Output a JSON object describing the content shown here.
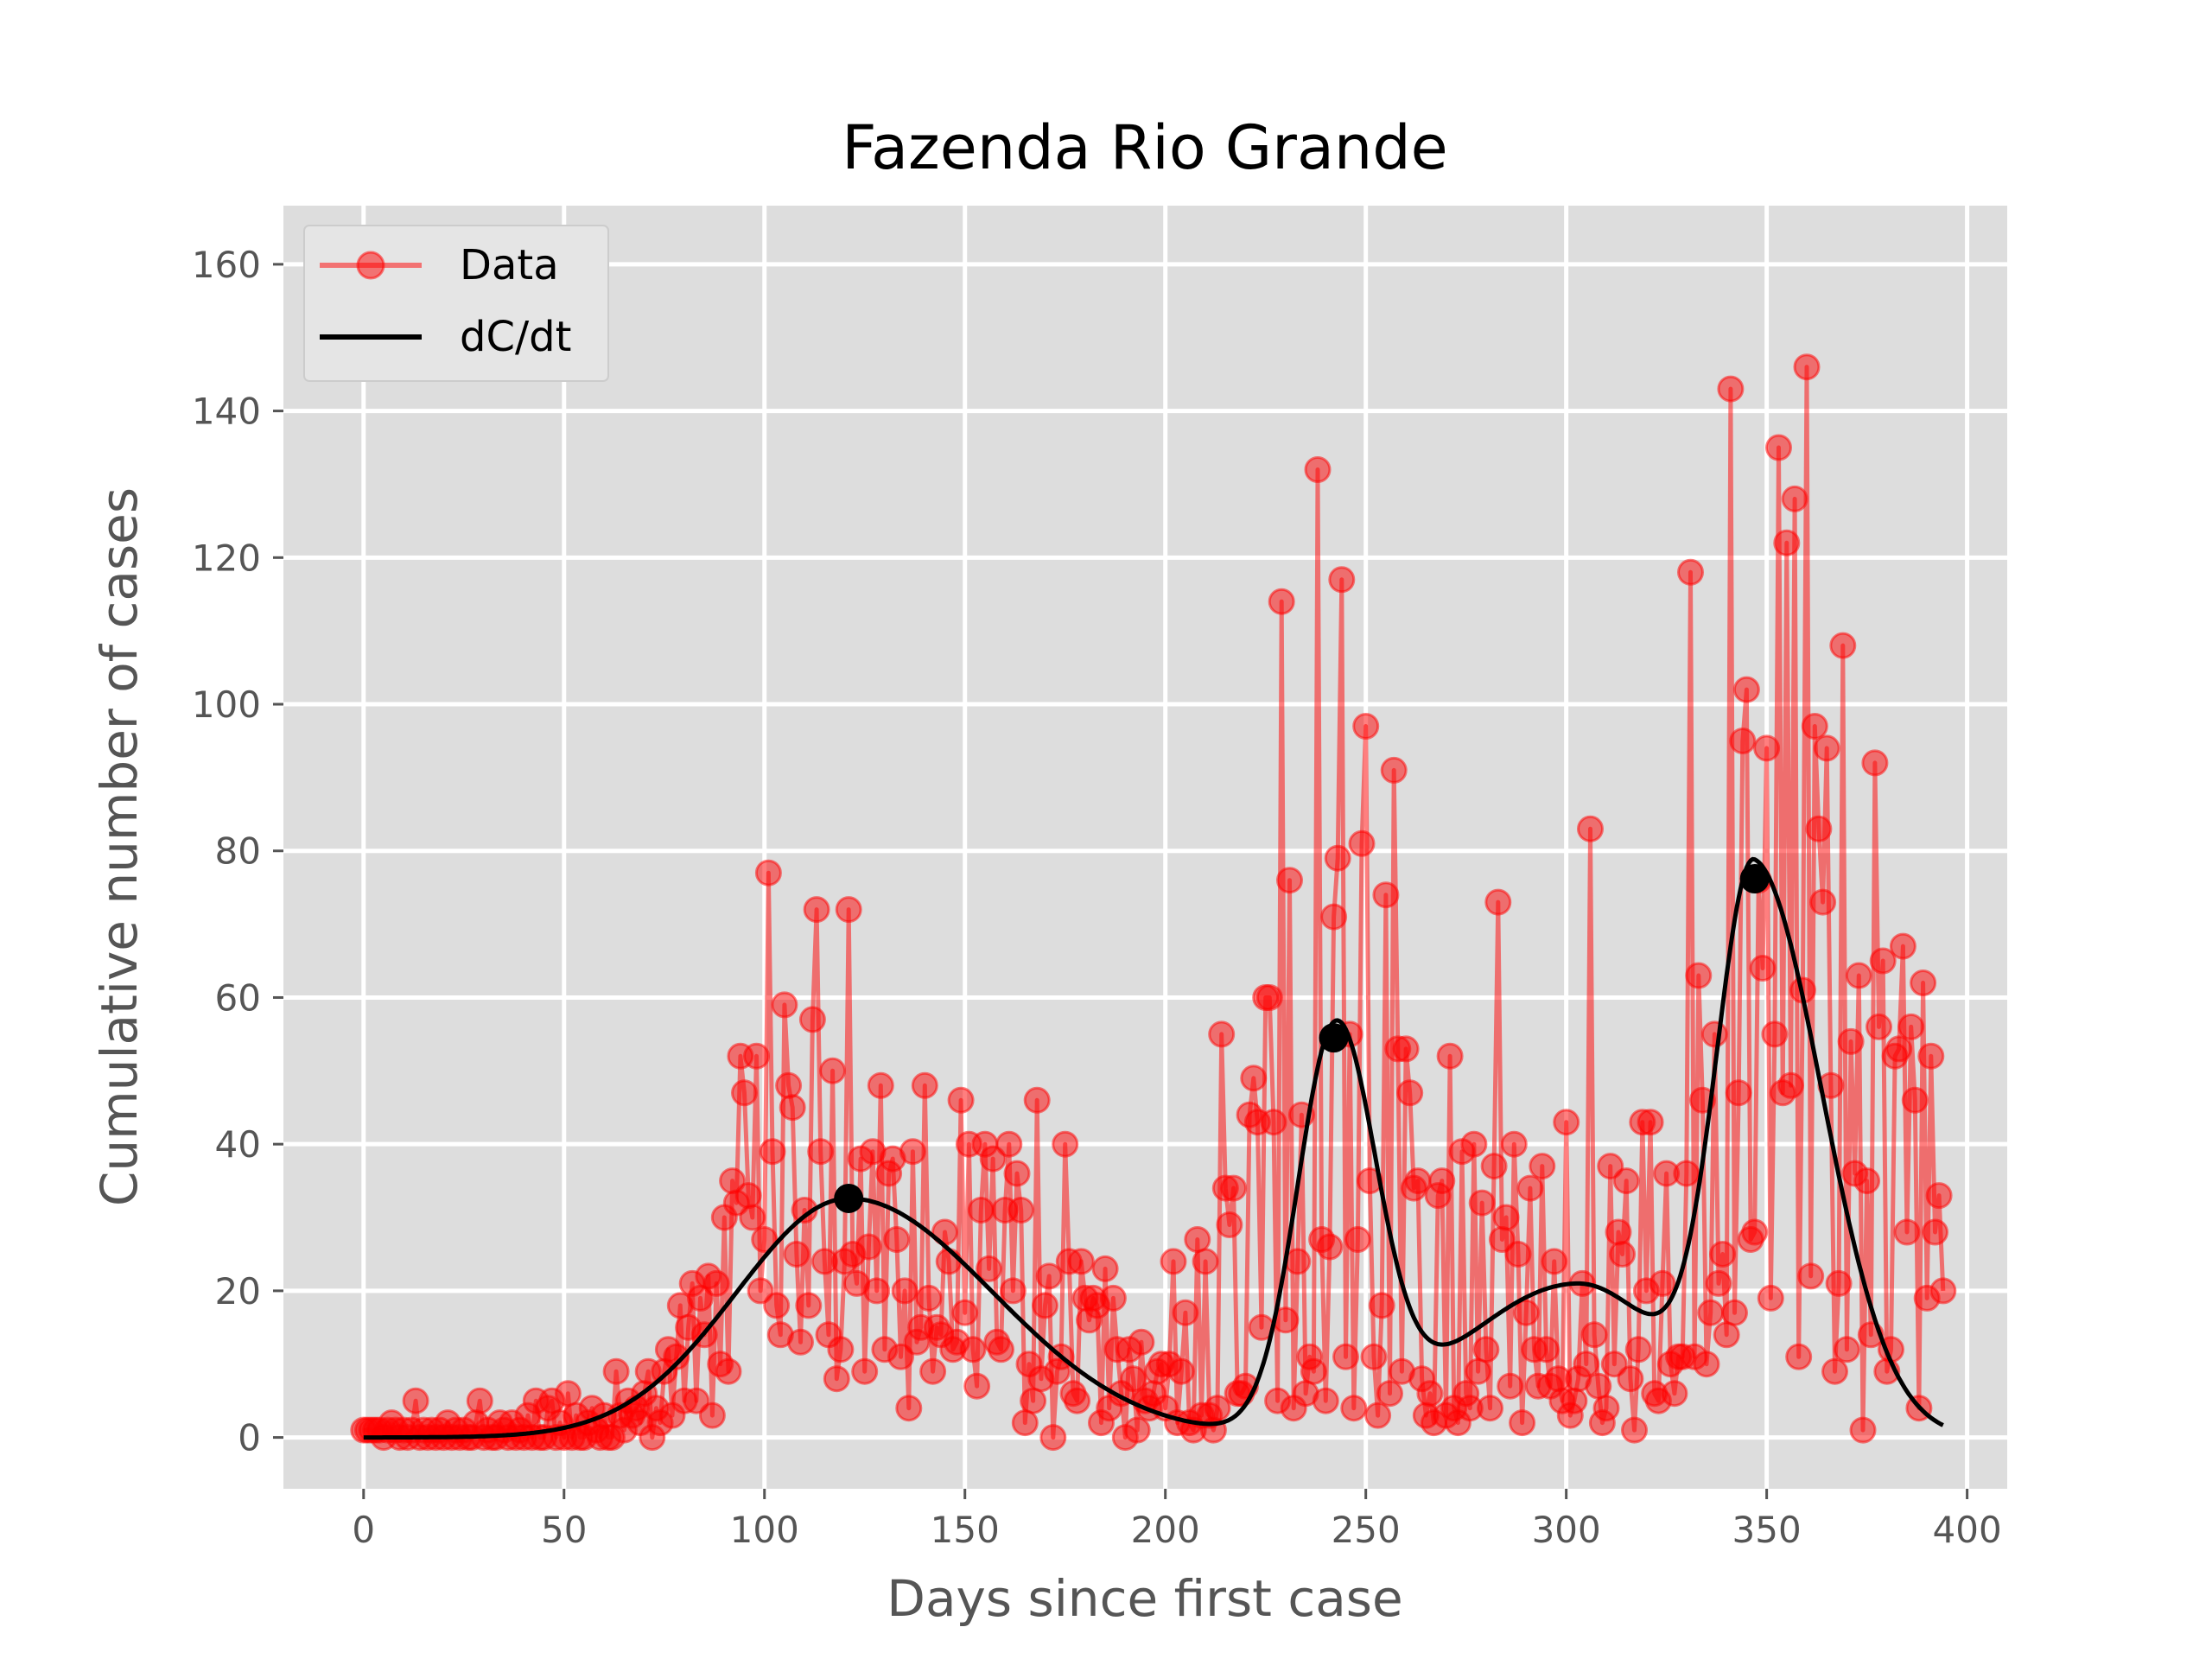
{
  "chart_data": {
    "type": "line",
    "title": "Fazenda Rio Grande",
    "xlabel": "Days since first case",
    "ylabel": "Cumulative number of cases",
    "xlim": [
      -20,
      410
    ],
    "ylim": [
      -7,
      168
    ],
    "x_ticks": [
      0,
      50,
      100,
      150,
      200,
      250,
      300,
      350,
      400
    ],
    "y_ticks": [
      0,
      20,
      40,
      60,
      80,
      100,
      120,
      140,
      160
    ],
    "grid": true,
    "legend_position": "top-left",
    "colors": {
      "background": "#dddddd",
      "grid": "#ffffff",
      "data": "#ff0000",
      "fit": "#000000"
    },
    "series": [
      {
        "name": "Data",
        "style": "line-with-markers",
        "x_start": 0,
        "x_step": 1,
        "values": [
          1,
          1,
          1,
          1,
          1,
          0,
          1,
          2,
          1,
          0,
          1,
          0,
          1,
          5,
          0,
          1,
          0,
          1,
          0,
          1,
          0,
          2,
          0,
          1,
          0,
          1,
          0,
          0,
          2,
          5,
          0,
          1,
          0,
          0,
          2,
          1,
          0,
          2,
          0,
          1,
          0,
          3,
          0,
          5,
          0,
          0,
          4,
          5,
          0,
          2,
          0,
          6,
          0,
          3,
          0,
          0,
          2,
          4,
          1,
          0,
          3,
          0,
          0,
          9,
          3,
          1,
          5,
          3,
          4,
          2,
          6,
          9,
          0,
          4,
          2,
          9,
          12,
          3,
          11,
          18,
          5,
          15,
          21,
          5,
          19,
          14,
          22,
          3,
          21,
          10,
          30,
          9,
          35,
          32,
          52,
          47,
          33,
          30,
          52,
          20,
          27,
          77,
          39,
          18,
          14,
          59,
          48,
          45,
          25,
          13,
          31,
          18,
          57,
          72,
          39,
          24,
          14,
          50,
          8,
          12,
          24,
          72,
          25,
          21,
          38,
          9,
          26,
          39,
          20,
          48,
          12,
          36,
          38,
          27,
          11,
          20,
          4,
          39,
          13,
          15,
          48,
          19,
          9,
          15,
          14,
          28,
          24,
          12,
          13,
          46,
          17,
          40,
          12,
          7,
          31,
          40,
          23,
          38,
          13,
          12,
          31,
          40,
          20,
          36,
          31,
          2,
          10,
          5,
          46,
          8,
          18,
          22,
          0,
          9,
          11,
          40,
          24,
          6,
          5,
          24,
          19,
          16,
          19,
          18,
          2,
          23,
          4,
          19,
          12,
          6,
          0,
          12,
          8,
          1,
          13,
          5,
          4,
          6,
          9,
          10,
          4,
          10,
          24,
          2,
          9,
          17,
          2,
          1,
          27,
          3,
          24,
          3,
          1,
          4,
          55,
          34,
          29,
          34,
          6,
          6,
          7,
          44,
          49,
          43,
          15,
          60,
          60,
          43,
          5,
          114,
          16,
          76,
          4,
          24,
          44,
          6,
          11,
          9,
          132,
          27,
          5,
          26,
          71,
          79,
          117,
          11,
          55,
          4,
          27,
          81,
          97,
          35,
          11,
          3,
          18,
          74,
          6,
          91,
          53,
          9,
          53,
          47,
          34,
          35,
          8,
          3,
          6,
          2,
          33,
          35,
          3,
          52,
          4,
          2,
          39,
          6,
          4,
          40,
          9,
          32,
          12,
          4,
          37,
          73,
          27,
          30,
          7,
          40,
          25,
          2,
          17,
          34,
          12,
          7,
          37,
          12,
          7,
          24,
          8,
          5,
          43,
          3,
          5,
          8,
          21,
          10,
          83,
          14,
          7,
          2,
          4,
          37,
          10,
          28,
          25,
          35,
          8,
          1,
          12,
          43,
          20,
          43,
          6,
          5,
          21,
          36,
          10,
          6,
          11,
          11,
          36,
          118,
          11,
          63,
          46,
          10,
          17,
          55,
          21,
          25,
          14,
          143,
          17,
          47,
          95,
          102,
          27,
          28,
          76,
          64,
          94,
          19,
          55,
          135,
          47,
          122,
          48,
          128,
          11,
          61,
          146,
          22,
          97,
          83,
          73,
          94,
          48,
          9,
          21,
          108,
          12,
          54,
          36,
          63,
          1,
          35,
          14,
          92,
          56,
          65,
          9,
          12,
          52,
          53,
          67,
          28,
          56,
          46,
          4,
          62,
          19,
          52,
          28,
          33,
          20
        ]
      },
      {
        "name": "dC/dt",
        "style": "line",
        "components": [
          {
            "amplitude": 32.6,
            "center": 121,
            "left_width": 28,
            "right_width": 36
          },
          {
            "amplitude": 54,
            "center": 242.5,
            "left_width": 9.5,
            "right_width": 10
          },
          {
            "amplitude": 76,
            "center": 347,
            "left_width": 9.5,
            "right_width": 17
          },
          {
            "amplitude": 21,
            "center": 303,
            "left_width": 30,
            "right_width": 22
          }
        ],
        "peaks": [
          {
            "x": 121,
            "y": 32.6
          },
          {
            "x": 242,
            "y": 54.5
          },
          {
            "x": 347,
            "y": 76.2
          }
        ]
      }
    ]
  }
}
